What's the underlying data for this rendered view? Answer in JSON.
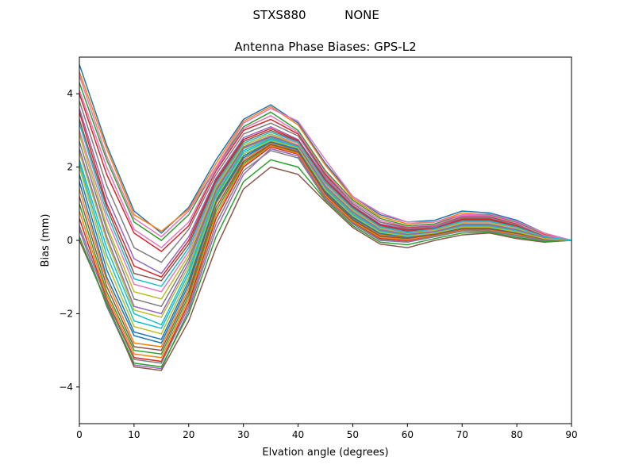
{
  "figure": {
    "suptitle_left": "STXS880",
    "suptitle_right": "NONE"
  },
  "chart_data": {
    "type": "line",
    "title": "Antenna Phase Biases: GPS-L2",
    "xlabel": "Elvation angle (degrees)",
    "ylabel": "Bias (mm)",
    "xlim": [
      0,
      90
    ],
    "ylim": [
      -5,
      5
    ],
    "x_ticks": [
      0,
      10,
      20,
      30,
      40,
      50,
      60,
      70,
      80,
      90
    ],
    "y_ticks": [
      -4,
      -2,
      0,
      2,
      4
    ],
    "x_tick_labels": [
      "0",
      "10",
      "20",
      "30",
      "40",
      "50",
      "60",
      "70",
      "80",
      "90"
    ],
    "y_tick_labels": [
      "−4",
      "−2",
      "0",
      "2",
      "4"
    ],
    "grid": false,
    "legend": "none",
    "x": [
      0,
      5,
      10,
      15,
      20,
      25,
      30,
      35,
      40,
      45,
      50,
      55,
      60,
      65,
      70,
      75,
      80,
      85,
      90
    ],
    "colors": [
      "#1f77b4",
      "#ff7f0e",
      "#2ca02c",
      "#d62728",
      "#9467bd",
      "#8c564b",
      "#e377c2",
      "#7f7f7f",
      "#bcbd22",
      "#17becf"
    ],
    "series": [
      {
        "values": [
          4.8,
          2.6,
          0.8,
          0.2,
          0.9,
          2.2,
          3.3,
          3.7,
          3.2,
          2.1,
          1.2,
          0.7,
          0.5,
          0.55,
          0.8,
          0.75,
          0.55,
          0.2,
          0.0
        ]
      },
      {
        "values": [
          4.6,
          2.5,
          0.7,
          0.25,
          0.85,
          2.1,
          3.25,
          3.65,
          3.15,
          2.05,
          1.15,
          0.65,
          0.45,
          0.5,
          0.75,
          0.7,
          0.5,
          0.18,
          0.0
        ]
      },
      {
        "values": [
          4.3,
          2.2,
          0.5,
          0.0,
          0.7,
          2.0,
          3.1,
          3.5,
          3.0,
          1.9,
          1.1,
          0.6,
          0.4,
          0.45,
          0.7,
          0.7,
          0.5,
          0.15,
          0.0
        ]
      },
      {
        "values": [
          4.0,
          1.8,
          0.2,
          -0.3,
          0.4,
          1.9,
          3.0,
          3.3,
          2.9,
          1.8,
          1.0,
          0.5,
          0.35,
          0.4,
          0.65,
          0.65,
          0.45,
          0.15,
          0.0
        ]
      },
      {
        "values": [
          3.6,
          1.2,
          -0.5,
          -0.9,
          0.1,
          1.7,
          2.8,
          3.1,
          2.75,
          1.7,
          0.95,
          0.45,
          0.3,
          0.35,
          0.6,
          0.6,
          0.4,
          0.12,
          0.0
        ]
      },
      {
        "values": [
          3.3,
          0.9,
          -0.9,
          -1.1,
          -0.1,
          1.6,
          2.7,
          3.0,
          2.7,
          1.6,
          0.9,
          0.4,
          0.25,
          0.3,
          0.55,
          0.55,
          0.38,
          0.1,
          0.0
        ]
      },
      {
        "values": [
          3.0,
          0.6,
          -1.2,
          -1.4,
          -0.3,
          1.5,
          2.6,
          2.9,
          2.65,
          1.55,
          0.85,
          0.35,
          0.2,
          0.3,
          0.5,
          0.5,
          0.35,
          0.1,
          0.0
        ]
      },
      {
        "values": [
          2.7,
          0.3,
          -1.6,
          -1.8,
          -0.5,
          1.4,
          2.55,
          2.85,
          2.6,
          1.5,
          0.8,
          0.3,
          0.2,
          0.25,
          0.45,
          0.45,
          0.3,
          0.08,
          0.0
        ]
      },
      {
        "values": [
          2.4,
          0.0,
          -1.9,
          -2.1,
          -0.7,
          1.3,
          2.5,
          2.8,
          2.6,
          1.45,
          0.75,
          0.28,
          0.15,
          0.25,
          0.4,
          0.4,
          0.28,
          0.07,
          0.0
        ]
      },
      {
        "values": [
          2.1,
          -0.4,
          -2.2,
          -2.4,
          -0.9,
          1.2,
          2.4,
          2.75,
          2.55,
          1.4,
          0.7,
          0.25,
          0.12,
          0.2,
          0.38,
          0.38,
          0.25,
          0.05,
          0.0
        ]
      },
      {
        "values": [
          1.8,
          -0.8,
          -2.5,
          -2.7,
          -1.1,
          1.1,
          2.3,
          2.7,
          2.5,
          1.35,
          0.65,
          0.2,
          0.1,
          0.2,
          0.35,
          0.35,
          0.22,
          0.05,
          0.0
        ]
      },
      {
        "values": [
          1.4,
          -1.1,
          -2.8,
          -2.9,
          -1.3,
          1.0,
          2.2,
          2.65,
          2.45,
          1.3,
          0.6,
          0.15,
          0.08,
          0.18,
          0.32,
          0.32,
          0.2,
          0.04,
          0.0
        ]
      },
      {
        "values": [
          1.0,
          -1.4,
          -3.0,
          -3.1,
          -1.5,
          0.8,
          2.1,
          2.6,
          2.4,
          1.25,
          0.55,
          0.1,
          0.05,
          0.15,
          0.3,
          0.3,
          0.18,
          0.03,
          0.0
        ]
      },
      {
        "values": [
          0.6,
          -1.6,
          -3.2,
          -3.3,
          -1.7,
          0.6,
          2.0,
          2.55,
          2.35,
          1.2,
          0.5,
          0.05,
          0.0,
          0.12,
          0.28,
          0.28,
          0.15,
          0.02,
          0.0
        ]
      },
      {
        "values": [
          0.3,
          -1.8,
          -3.4,
          -3.5,
          -1.9,
          0.3,
          1.8,
          2.5,
          2.3,
          1.15,
          0.45,
          0.0,
          -0.05,
          0.1,
          0.25,
          0.25,
          0.12,
          0.0,
          0.0
        ]
      },
      {
        "values": [
          0.0,
          -1.7,
          -3.45,
          -3.55,
          -2.2,
          -0.2,
          1.4,
          2.0,
          1.8,
          1.05,
          0.35,
          -0.1,
          -0.2,
          0.0,
          0.15,
          0.2,
          0.05,
          -0.05,
          0.0
        ]
      },
      {
        "values": [
          4.5,
          2.3,
          0.6,
          0.1,
          0.8,
          2.0,
          3.2,
          3.6,
          3.25,
          2.2,
          1.2,
          0.75,
          0.5,
          0.5,
          0.7,
          0.72,
          0.52,
          0.2,
          0.0
        ]
      },
      {
        "values": [
          3.8,
          1.5,
          -0.2,
          -0.6,
          0.3,
          1.8,
          2.9,
          3.2,
          2.85,
          1.75,
          1.0,
          0.5,
          0.32,
          0.38,
          0.62,
          0.62,
          0.42,
          0.13,
          0.0
        ]
      },
      {
        "values": [
          2.9,
          0.4,
          -1.4,
          -1.6,
          -0.4,
          1.45,
          2.6,
          2.9,
          2.6,
          1.5,
          0.82,
          0.32,
          0.18,
          0.27,
          0.47,
          0.47,
          0.32,
          0.09,
          0.0
        ]
      },
      {
        "values": [
          2.2,
          -0.2,
          -2.0,
          -2.3,
          -0.8,
          1.25,
          2.45,
          2.78,
          2.55,
          1.42,
          0.72,
          0.27,
          0.14,
          0.22,
          0.4,
          0.39,
          0.26,
          0.06,
          0.0
        ]
      },
      {
        "values": [
          1.6,
          -1.0,
          -2.6,
          -2.8,
          -1.2,
          1.05,
          2.25,
          2.68,
          2.47,
          1.32,
          0.62,
          0.18,
          0.09,
          0.19,
          0.33,
          0.33,
          0.21,
          0.04,
          0.0
        ]
      },
      {
        "values": [
          0.8,
          -1.5,
          -3.1,
          -3.2,
          -1.6,
          0.7,
          2.05,
          2.58,
          2.37,
          1.22,
          0.52,
          0.08,
          0.02,
          0.14,
          0.29,
          0.29,
          0.16,
          0.02,
          0.0
        ]
      },
      {
        "values": [
          0.1,
          -1.75,
          -3.35,
          -3.45,
          -2.0,
          0.1,
          1.6,
          2.2,
          2.0,
          1.1,
          0.4,
          -0.05,
          -0.12,
          0.05,
          0.2,
          0.22,
          0.08,
          -0.03,
          0.0
        ]
      },
      {
        "values": [
          3.5,
          1.0,
          -0.7,
          -1.0,
          0.0,
          1.65,
          2.75,
          3.05,
          2.72,
          1.65,
          0.92,
          0.42,
          0.28,
          0.33,
          0.58,
          0.58,
          0.39,
          0.11,
          0.0
        ]
      },
      {
        "values": [
          2.5,
          0.1,
          -1.8,
          -2.0,
          -0.6,
          1.35,
          2.52,
          2.82,
          2.58,
          1.47,
          0.77,
          0.29,
          0.16,
          0.24,
          0.42,
          0.42,
          0.29,
          0.07,
          0.0
        ]
      },
      {
        "values": [
          1.2,
          -1.25,
          -2.9,
          -3.0,
          -1.4,
          0.9,
          2.15,
          2.62,
          2.42,
          1.27,
          0.57,
          0.12,
          0.06,
          0.16,
          0.31,
          0.31,
          0.19,
          0.03,
          0.0
        ]
      },
      {
        "values": [
          4.1,
          2.0,
          0.3,
          -0.2,
          0.5,
          1.95,
          3.05,
          3.4,
          2.95,
          1.85,
          1.05,
          0.55,
          0.37,
          0.42,
          0.67,
          0.67,
          0.47,
          0.14,
          0.0
        ]
      },
      {
        "values": [
          0.4,
          -1.65,
          -3.25,
          -3.35,
          -1.8,
          0.45,
          1.9,
          2.45,
          2.25,
          1.12,
          0.47,
          0.02,
          -0.03,
          0.11,
          0.26,
          0.26,
          0.13,
          0.01,
          0.0
        ]
      },
      {
        "values": [
          2.0,
          -0.6,
          -2.35,
          -2.55,
          -1.0,
          1.15,
          2.35,
          2.72,
          2.52,
          1.37,
          0.67,
          0.22,
          0.11,
          0.2,
          0.36,
          0.36,
          0.23,
          0.05,
          0.0
        ]
      },
      {
        "values": [
          3.2,
          0.75,
          -1.05,
          -1.25,
          -0.2,
          1.55,
          2.65,
          2.95,
          2.68,
          1.58,
          0.87,
          0.37,
          0.22,
          0.31,
          0.52,
          0.52,
          0.36,
          0.1,
          0.0
        ]
      }
    ]
  }
}
